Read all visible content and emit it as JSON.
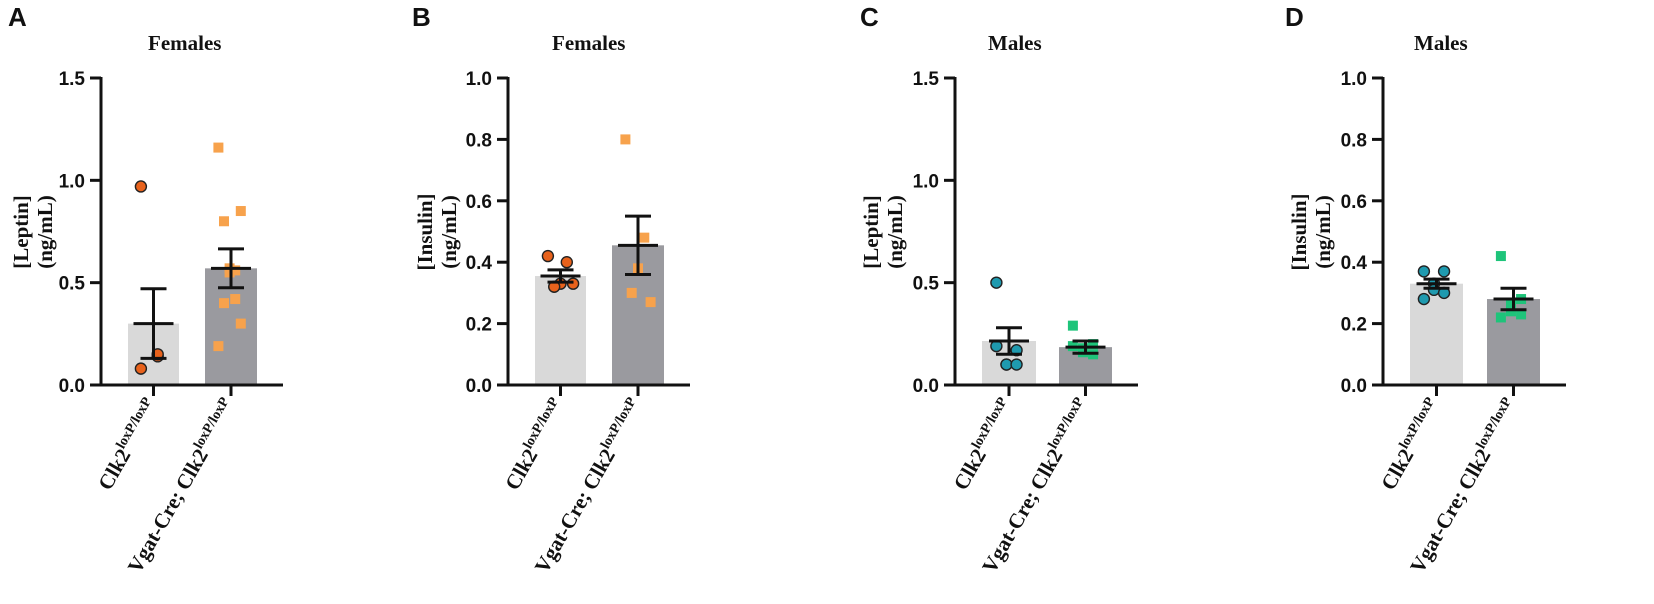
{
  "chart_data": [
    {
      "type": "bar",
      "panel": "A",
      "title": "Females",
      "ylabel_line1": "[Leptin]",
      "ylabel_line2": "(ng/mL)",
      "ylim": [
        0,
        1.5
      ],
      "yticks": [
        "0.0",
        "0.5",
        "1.0",
        "1.5"
      ],
      "ytick_values": [
        0,
        0.5,
        1.0,
        1.5
      ],
      "categories": [
        {
          "prefix": "Clk2",
          "sup": "loxP/loxP"
        },
        {
          "prefix": "Vgat-Cre; Clk2",
          "sup": "loxP/loxP"
        }
      ],
      "series": [
        {
          "name": "Clk2 loxP/loxP",
          "mean": 0.3,
          "sem": 0.17,
          "bar_color": "#d9d9d9",
          "marker": "circle",
          "marker_color": "#e8621c",
          "points": [
            0.97,
            0.14,
            0.15,
            0.08
          ]
        },
        {
          "name": "Vgat-Cre; Clk2 loxP/loxP",
          "mean": 0.57,
          "sem": 0.095,
          "bar_color": "#9a9a9f",
          "marker": "square",
          "marker_color": "#f7a24c",
          "points": [
            1.16,
            0.85,
            0.8,
            0.56,
            0.57,
            0.55,
            0.42,
            0.4,
            0.3,
            0.19
          ]
        }
      ]
    },
    {
      "type": "bar",
      "panel": "B",
      "title": "Females",
      "ylabel_line1": "[Insulin]",
      "ylabel_line2": "(ng/mL)",
      "ylim": [
        0,
        1.0
      ],
      "yticks": [
        "0.0",
        "0.2",
        "0.4",
        "0.6",
        "0.8",
        "1.0"
      ],
      "ytick_values": [
        0,
        0.2,
        0.4,
        0.6,
        0.8,
        1.0
      ],
      "categories": [
        {
          "prefix": "Clk2",
          "sup": "loxP/loxP"
        },
        {
          "prefix": "Vgat-Cre; Clk2",
          "sup": "loxP/loxP"
        }
      ],
      "series": [
        {
          "name": "Clk2 loxP/loxP",
          "mean": 0.355,
          "sem": 0.02,
          "bar_color": "#d9d9d9",
          "marker": "circle",
          "marker_color": "#e8621c",
          "points": [
            0.42,
            0.4,
            0.33,
            0.32,
            0.33
          ]
        },
        {
          "name": "Vgat-Cre; Clk2 loxP/loxP",
          "mean": 0.455,
          "sem": 0.095,
          "bar_color": "#9a9a9f",
          "marker": "square",
          "marker_color": "#f7a24c",
          "points": [
            0.8,
            0.48,
            0.38,
            0.3,
            0.27
          ]
        }
      ]
    },
    {
      "type": "bar",
      "panel": "C",
      "title": "Males",
      "ylabel_line1": "[Leptin]",
      "ylabel_line2": "(ng/mL)",
      "ylim": [
        0,
        1.5
      ],
      "yticks": [
        "0.0",
        "0.5",
        "1.0",
        "1.5"
      ],
      "ytick_values": [
        0,
        0.5,
        1.0,
        1.5
      ],
      "categories": [
        {
          "prefix": "Clk2",
          "sup": "loxP/loxP"
        },
        {
          "prefix": "Vgat-Cre; Clk2",
          "sup": "loxP/loxP"
        }
      ],
      "series": [
        {
          "name": "Clk2 loxP/loxP",
          "mean": 0.215,
          "sem": 0.065,
          "bar_color": "#d9d9d9",
          "marker": "circle",
          "marker_color": "#1f9aaf",
          "points": [
            0.5,
            0.17,
            0.1,
            0.1,
            0.1,
            0.19
          ]
        },
        {
          "name": "Vgat-Cre; Clk2 loxP/loxP",
          "mean": 0.185,
          "sem": 0.03,
          "bar_color": "#9a9a9f",
          "marker": "square",
          "marker_color": "#1ec47a",
          "points": [
            0.29,
            0.2,
            0.18,
            0.16,
            0.15,
            0.19
          ]
        }
      ]
    },
    {
      "type": "bar",
      "panel": "D",
      "title": "Males",
      "ylabel_line1": "[Insulin]",
      "ylabel_line2": "(ng/mL)",
      "ylim": [
        0,
        1.0
      ],
      "yticks": [
        "0.0",
        "0.2",
        "0.4",
        "0.6",
        "0.8",
        "1.0"
      ],
      "ytick_values": [
        0,
        0.2,
        0.4,
        0.6,
        0.8,
        1.0
      ],
      "categories": [
        {
          "prefix": "Clk2",
          "sup": "loxP/loxP"
        },
        {
          "prefix": "Vgat-Cre; Clk2",
          "sup": "loxP/loxP"
        }
      ],
      "series": [
        {
          "name": "Clk2 loxP/loxP",
          "mean": 0.33,
          "sem": 0.015,
          "bar_color": "#d9d9d9",
          "marker": "circle",
          "marker_color": "#1f9aaf",
          "points": [
            0.37,
            0.37,
            0.33,
            0.31,
            0.3,
            0.28
          ]
        },
        {
          "name": "Vgat-Cre; Clk2 loxP/loxP",
          "mean": 0.28,
          "sem": 0.035,
          "bar_color": "#9a9a9f",
          "marker": "square",
          "marker_color": "#1ec47a",
          "points": [
            0.42,
            0.28,
            0.26,
            0.24,
            0.23,
            0.22
          ]
        }
      ]
    }
  ]
}
